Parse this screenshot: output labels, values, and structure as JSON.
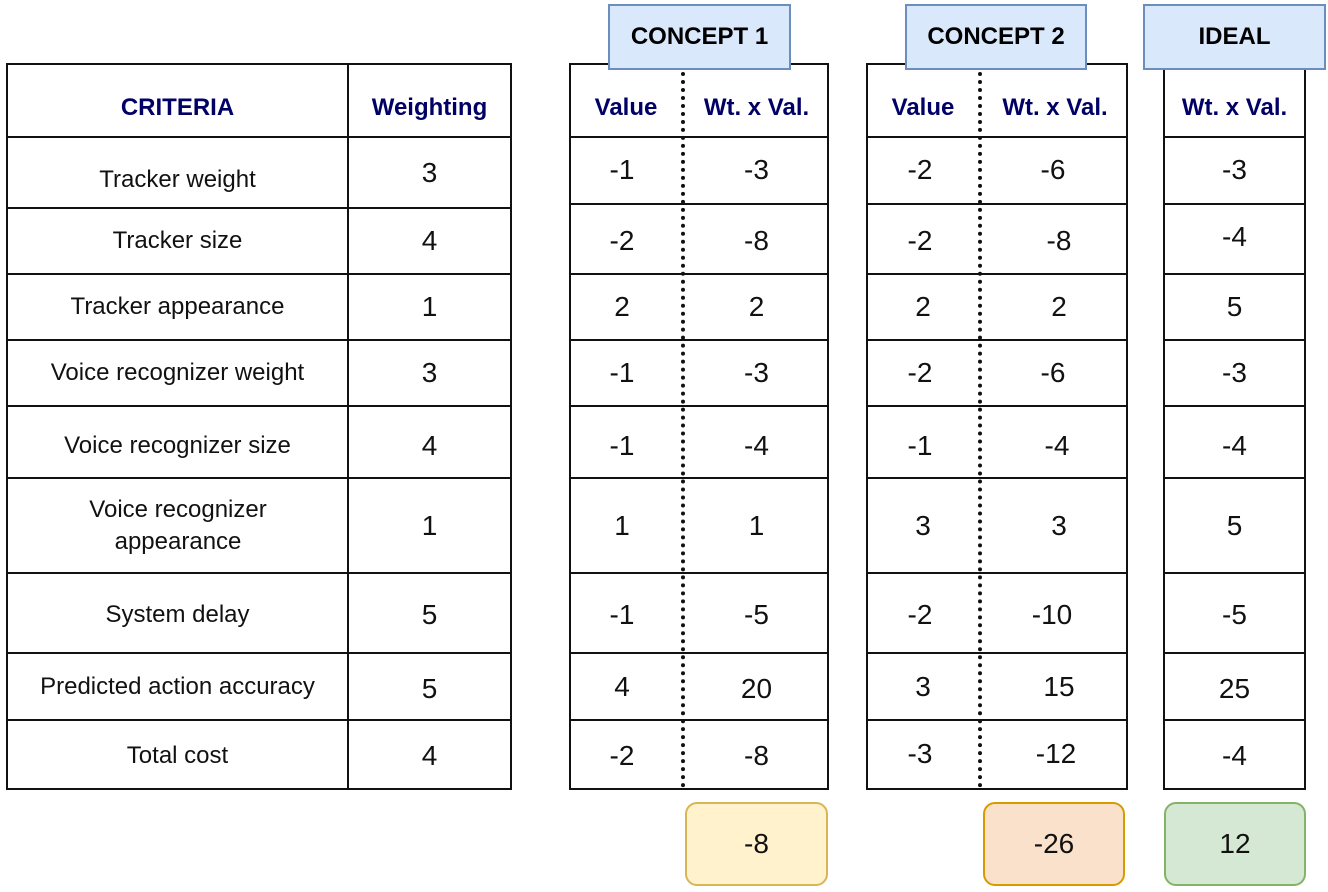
{
  "criteria_table": {
    "header_criteria": "CRITERIA",
    "header_weighting": "Weighting",
    "rows": [
      {
        "criterion": "Tracker weight",
        "weight": "3"
      },
      {
        "criterion": "Tracker size",
        "weight": "4"
      },
      {
        "criterion": "Tracker appearance",
        "weight": "1"
      },
      {
        "criterion": "Voice recognizer weight",
        "weight": "3"
      },
      {
        "criterion": "Voice recognizer size",
        "weight": "4"
      },
      {
        "criterion": "Voice recognizer appearance",
        "weight": "1"
      },
      {
        "criterion": "System delay",
        "weight": "5"
      },
      {
        "criterion": "Predicted action accuracy",
        "weight": "5"
      },
      {
        "criterion": "Total cost",
        "weight": "4"
      }
    ]
  },
  "concept1": {
    "title": "CONCEPT 1",
    "header_value": "Value",
    "header_wtval": "Wt. x Val.",
    "values": [
      "-1",
      "-2",
      "2",
      "-1",
      "-1",
      "1",
      "-1",
      "4",
      "-2"
    ],
    "wtvals": [
      "-3",
      "-8",
      "2",
      "-3",
      "-4",
      "1",
      "-5",
      "20",
      "-8"
    ],
    "total": "-8"
  },
  "concept2": {
    "title": "CONCEPT 2",
    "header_value": "Value",
    "header_wtval": "Wt. x Val.",
    "values": [
      "-2",
      "-2",
      "2",
      "-2",
      "-1",
      "3",
      "-2",
      "3",
      "-3"
    ],
    "wtvals": [
      "-6",
      "-8",
      "2",
      "-6",
      "-4",
      "3",
      "-10",
      "15",
      "-12"
    ],
    "total": "-26"
  },
  "ideal": {
    "title": "IDEAL",
    "header_wtval": "Wt. x Val.",
    "wtvals": [
      "-3",
      "-4",
      "5",
      "-3",
      "-4",
      "5",
      "-5",
      "25",
      "-4"
    ],
    "total": "12"
  },
  "colors": {
    "header_text": "#000066",
    "tab_fill": "#dae8fc",
    "tab_border": "#6c8ebf",
    "concept1_total_fill": "#fff2cc",
    "concept1_total_border": "#d6b656",
    "concept2_total_fill": "#fae1cc",
    "concept2_total_border": "#d79b00",
    "ideal_total_fill": "#d5e8d4",
    "ideal_total_border": "#82b366"
  }
}
